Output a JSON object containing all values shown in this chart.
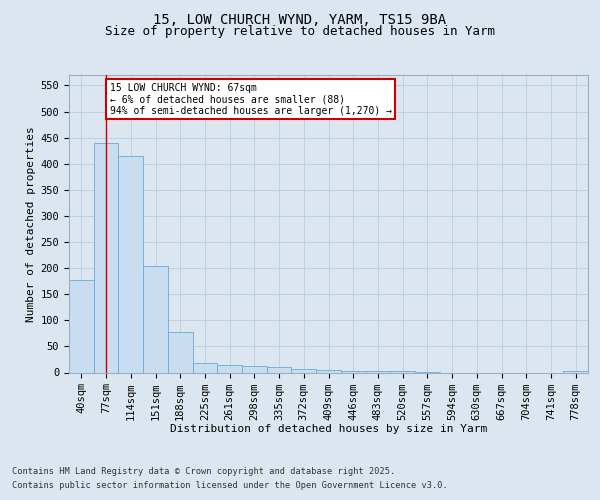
{
  "title1": "15, LOW CHURCH WYND, YARM, TS15 9BA",
  "title2": "Size of property relative to detached houses in Yarm",
  "xlabel": "Distribution of detached houses by size in Yarm",
  "ylabel": "Number of detached properties",
  "categories": [
    "40sqm",
    "77sqm",
    "114sqm",
    "151sqm",
    "188sqm",
    "225sqm",
    "261sqm",
    "298sqm",
    "335sqm",
    "372sqm",
    "409sqm",
    "446sqm",
    "483sqm",
    "520sqm",
    "557sqm",
    "594sqm",
    "630sqm",
    "667sqm",
    "704sqm",
    "741sqm",
    "778sqm"
  ],
  "values": [
    178,
    440,
    415,
    204,
    78,
    18,
    15,
    13,
    10,
    6,
    4,
    2,
    2,
    2,
    1,
    0,
    0,
    0,
    0,
    0,
    3
  ],
  "bar_color": "#c9ddf0",
  "bar_edge_color": "#6aaad4",
  "annotation_text": "15 LOW CHURCH WYND: 67sqm\n← 6% of detached houses are smaller (88)\n94% of semi-detached houses are larger (1,270) →",
  "annotation_box_color": "white",
  "annotation_box_edge_color": "#cc0000",
  "vline_color": "#cc0000",
  "vline_x_index": 1,
  "ylim": [
    0,
    570
  ],
  "yticks": [
    0,
    50,
    100,
    150,
    200,
    250,
    300,
    350,
    400,
    450,
    500,
    550
  ],
  "background_color": "#dce6f0",
  "grid_color": "#b8ccdd",
  "footer1": "Contains HM Land Registry data © Crown copyright and database right 2025.",
  "footer2": "Contains public sector information licensed under the Open Government Licence v3.0.",
  "title_fontsize": 10,
  "subtitle_fontsize": 9,
  "axis_label_fontsize": 8,
  "tick_fontsize": 7.5,
  "footer_fontsize": 6.2
}
